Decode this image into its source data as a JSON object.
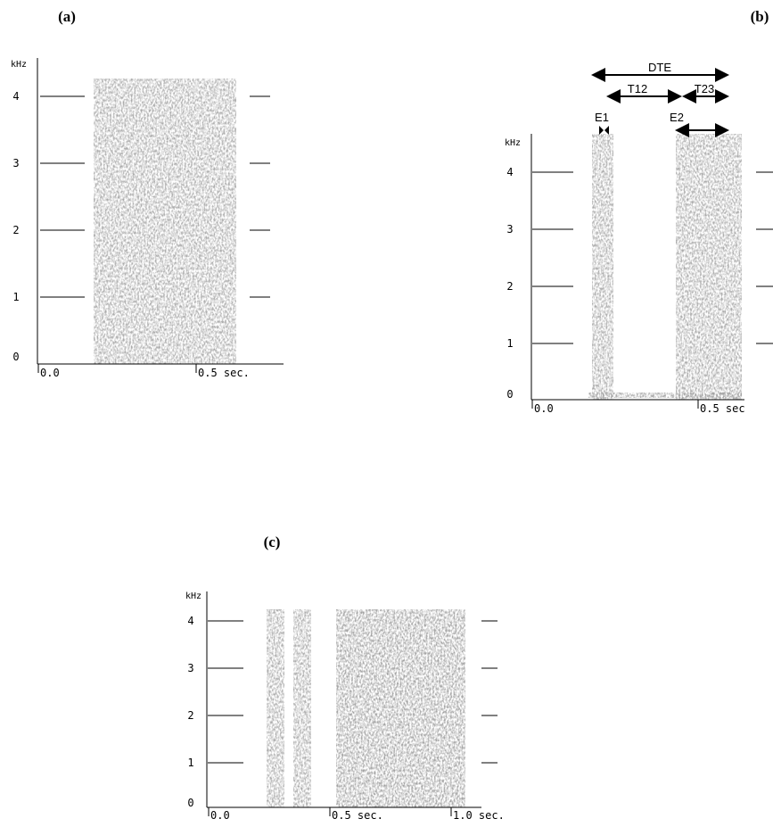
{
  "panels": [
    {
      "label": "(a)",
      "y_unit": "kHz",
      "yticks": [
        0,
        1,
        2,
        3,
        4
      ],
      "xticks": [
        "0.0",
        "0.5 sec."
      ]
    },
    {
      "label": "(b)",
      "y_unit": "kHz",
      "yticks": [
        0,
        1,
        2,
        3,
        4
      ],
      "xticks": [
        "0.0",
        "0.5 sec"
      ],
      "annotations": [
        "DTE",
        "T12",
        "T23",
        "E1",
        "E2"
      ]
    },
    {
      "label": "(c)",
      "y_unit": "kHz",
      "yticks": [
        0,
        1,
        2,
        3,
        4
      ],
      "xticks": [
        "0.0",
        "0.5 sec.",
        "1.0 sec."
      ]
    }
  ]
}
